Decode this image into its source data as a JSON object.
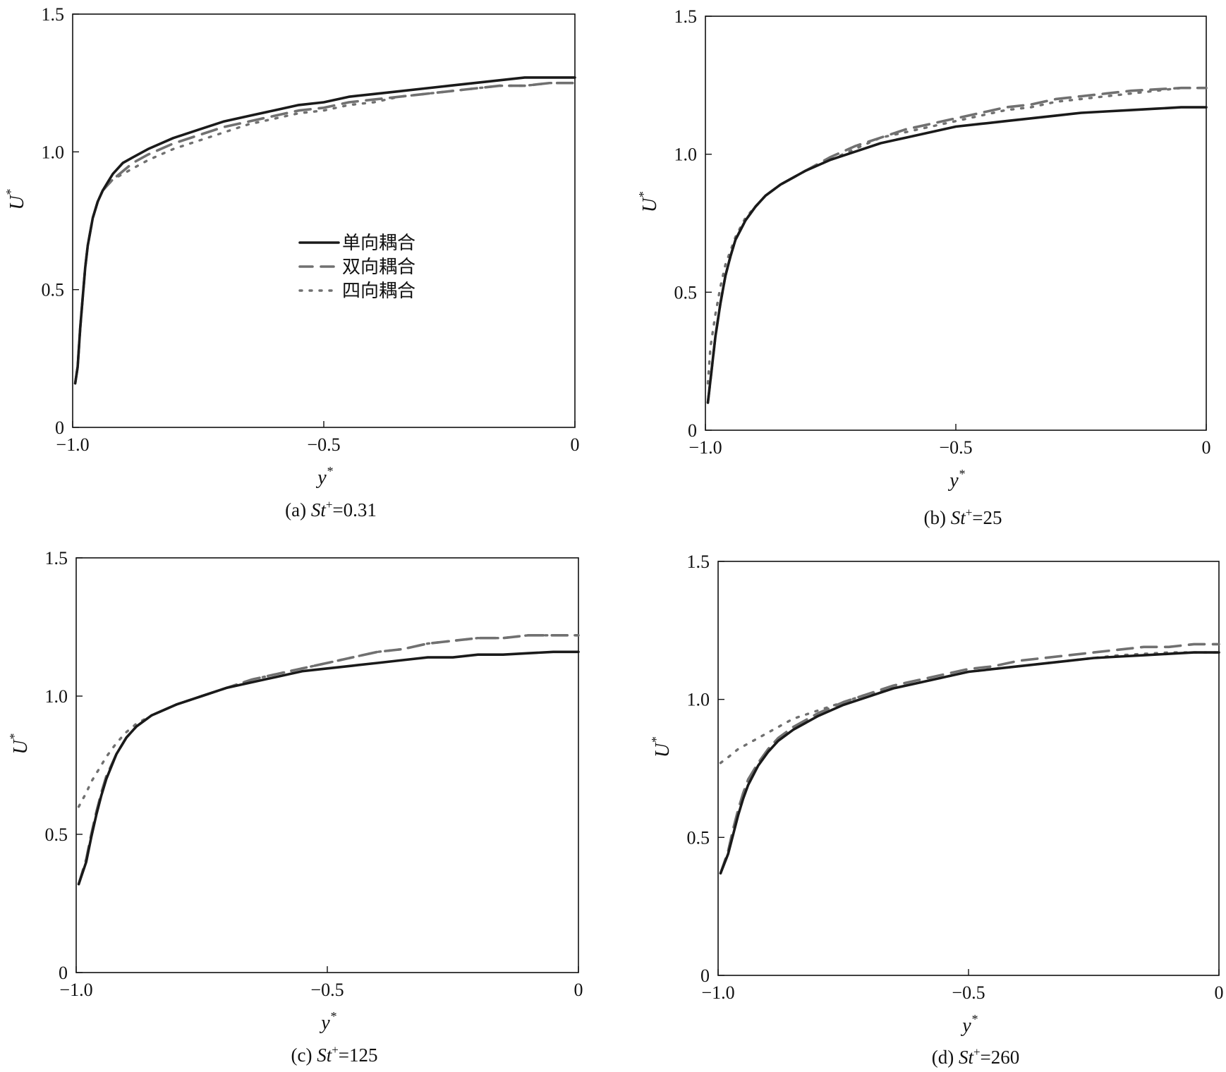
{
  "legend": {
    "entries": [
      {
        "label": "单向耦合",
        "style": "solid",
        "color": "#1a1a1a"
      },
      {
        "label": "双向耦合",
        "style": "dashed",
        "color": "#707070"
      },
      {
        "label": "四向耦合",
        "style": "dotted",
        "color": "#707070"
      }
    ]
  },
  "chart_data": [
    {
      "type": "line",
      "id": "a",
      "caption_prefix": "(a) ",
      "caption_var": "St",
      "caption_sup": "+",
      "caption_value": "=0.31",
      "xlabel": "y",
      "xlabel_sup": "*",
      "ylabel": "U",
      "ylabel_sup": "*",
      "xlim": [
        -1.0,
        0
      ],
      "ylim": [
        0,
        1.5
      ],
      "xticks": [
        {
          "v": -1.0,
          "label": "−1.0"
        },
        {
          "v": -0.5,
          "label": "−0.5"
        },
        {
          "v": 0,
          "label": "0"
        }
      ],
      "yticks": [
        {
          "v": 0,
          "label": "0"
        },
        {
          "v": 0.5,
          "label": "0.5"
        },
        {
          "v": 1.0,
          "label": "1.0"
        },
        {
          "v": 1.5,
          "label": "1.5"
        }
      ],
      "legend_shown": true,
      "series": [
        {
          "name": "单向耦合",
          "x": [
            -0.995,
            -0.99,
            -0.985,
            -0.98,
            -0.975,
            -0.97,
            -0.96,
            -0.95,
            -0.94,
            -0.93,
            -0.92,
            -0.9,
            -0.88,
            -0.85,
            -0.8,
            -0.75,
            -0.7,
            -0.65,
            -0.6,
            -0.55,
            -0.5,
            -0.45,
            -0.4,
            -0.35,
            -0.3,
            -0.25,
            -0.2,
            -0.15,
            -0.1,
            -0.05,
            0
          ],
          "y": [
            0.16,
            0.22,
            0.36,
            0.47,
            0.58,
            0.66,
            0.76,
            0.82,
            0.86,
            0.89,
            0.92,
            0.96,
            0.98,
            1.01,
            1.05,
            1.08,
            1.11,
            1.13,
            1.15,
            1.17,
            1.18,
            1.2,
            1.21,
            1.22,
            1.23,
            1.24,
            1.25,
            1.26,
            1.27,
            1.27,
            1.27
          ]
        },
        {
          "name": "双向耦合",
          "x": [
            -0.995,
            -0.99,
            -0.985,
            -0.98,
            -0.975,
            -0.97,
            -0.96,
            -0.95,
            -0.94,
            -0.93,
            -0.92,
            -0.9,
            -0.88,
            -0.85,
            -0.8,
            -0.75,
            -0.7,
            -0.65,
            -0.6,
            -0.55,
            -0.5,
            -0.45,
            -0.4,
            -0.35,
            -0.3,
            -0.25,
            -0.2,
            -0.15,
            -0.1,
            -0.05,
            0
          ],
          "y": [
            0.16,
            0.22,
            0.36,
            0.47,
            0.58,
            0.66,
            0.76,
            0.82,
            0.86,
            0.88,
            0.9,
            0.93,
            0.96,
            0.99,
            1.03,
            1.06,
            1.09,
            1.11,
            1.13,
            1.15,
            1.16,
            1.18,
            1.19,
            1.2,
            1.21,
            1.22,
            1.23,
            1.24,
            1.24,
            1.25,
            1.25
          ]
        },
        {
          "name": "四向耦合",
          "x": [
            -0.995,
            -0.99,
            -0.985,
            -0.98,
            -0.975,
            -0.97,
            -0.96,
            -0.95,
            -0.94,
            -0.93,
            -0.92,
            -0.9,
            -0.88,
            -0.85,
            -0.8,
            -0.75,
            -0.7,
            -0.65,
            -0.6,
            -0.55,
            -0.5,
            -0.45,
            -0.4,
            -0.35,
            -0.3,
            -0.25,
            -0.2,
            -0.15,
            -0.1,
            -0.05,
            0
          ],
          "y": [
            0.16,
            0.22,
            0.36,
            0.47,
            0.58,
            0.66,
            0.76,
            0.82,
            0.86,
            0.88,
            0.9,
            0.92,
            0.94,
            0.97,
            1.01,
            1.04,
            1.07,
            1.1,
            1.12,
            1.14,
            1.15,
            1.17,
            1.18,
            1.2,
            1.21,
            1.22,
            1.23,
            1.24,
            1.24,
            1.25,
            1.25
          ]
        }
      ]
    },
    {
      "type": "line",
      "id": "b",
      "caption_prefix": "(b) ",
      "caption_var": "St",
      "caption_sup": "+",
      "caption_value": "=25",
      "xlabel": "y",
      "xlabel_sup": "*",
      "ylabel": "U",
      "ylabel_sup": "*",
      "xlim": [
        -1.0,
        0
      ],
      "ylim": [
        0,
        1.5
      ],
      "xticks": [
        {
          "v": -1.0,
          "label": "−1.0"
        },
        {
          "v": -0.5,
          "label": "−0.5"
        },
        {
          "v": 0,
          "label": "0"
        }
      ],
      "yticks": [
        {
          "v": 0,
          "label": "0"
        },
        {
          "v": 0.5,
          "label": "0.5"
        },
        {
          "v": 1.0,
          "label": "1.0"
        },
        {
          "v": 1.5,
          "label": "1.5"
        }
      ],
      "legend_shown": false,
      "series": [
        {
          "name": "单向耦合",
          "x": [
            -0.995,
            -0.99,
            -0.98,
            -0.97,
            -0.96,
            -0.95,
            -0.94,
            -0.92,
            -0.9,
            -0.88,
            -0.85,
            -0.8,
            -0.75,
            -0.7,
            -0.65,
            -0.6,
            -0.55,
            -0.5,
            -0.45,
            -0.4,
            -0.35,
            -0.3,
            -0.25,
            -0.2,
            -0.15,
            -0.1,
            -0.05,
            0
          ],
          "y": [
            0.1,
            0.18,
            0.34,
            0.46,
            0.56,
            0.63,
            0.69,
            0.76,
            0.81,
            0.85,
            0.89,
            0.94,
            0.98,
            1.01,
            1.04,
            1.06,
            1.08,
            1.1,
            1.11,
            1.12,
            1.13,
            1.14,
            1.15,
            1.155,
            1.16,
            1.165,
            1.17,
            1.17
          ]
        },
        {
          "name": "双向耦合",
          "x": [
            -0.995,
            -0.99,
            -0.98,
            -0.97,
            -0.96,
            -0.95,
            -0.94,
            -0.92,
            -0.9,
            -0.88,
            -0.85,
            -0.8,
            -0.75,
            -0.7,
            -0.65,
            -0.6,
            -0.55,
            -0.5,
            -0.45,
            -0.4,
            -0.35,
            -0.3,
            -0.25,
            -0.2,
            -0.15,
            -0.1,
            -0.05,
            0
          ],
          "y": [
            0.1,
            0.18,
            0.34,
            0.46,
            0.56,
            0.63,
            0.69,
            0.76,
            0.81,
            0.85,
            0.89,
            0.94,
            0.99,
            1.03,
            1.06,
            1.09,
            1.11,
            1.13,
            1.15,
            1.17,
            1.18,
            1.2,
            1.21,
            1.22,
            1.23,
            1.235,
            1.24,
            1.24
          ]
        },
        {
          "name": "四向耦合",
          "x": [
            -0.995,
            -0.99,
            -0.98,
            -0.97,
            -0.96,
            -0.95,
            -0.94,
            -0.92,
            -0.9,
            -0.88,
            -0.85,
            -0.8,
            -0.75,
            -0.7,
            -0.65,
            -0.6,
            -0.55,
            -0.5,
            -0.45,
            -0.4,
            -0.35,
            -0.3,
            -0.25,
            -0.2,
            -0.15,
            -0.1,
            -0.05,
            0
          ],
          "y": [
            0.17,
            0.3,
            0.42,
            0.52,
            0.6,
            0.65,
            0.7,
            0.77,
            0.81,
            0.85,
            0.89,
            0.94,
            0.98,
            1.02,
            1.06,
            1.08,
            1.1,
            1.12,
            1.14,
            1.16,
            1.17,
            1.19,
            1.2,
            1.21,
            1.22,
            1.23,
            1.24,
            1.24
          ]
        }
      ]
    },
    {
      "type": "line",
      "id": "c",
      "caption_prefix": "(c) ",
      "caption_var": "St",
      "caption_sup": "+",
      "caption_value": "=125",
      "xlabel": "y",
      "xlabel_sup": "*",
      "ylabel": "U",
      "ylabel_sup": "*",
      "xlim": [
        -1.0,
        0
      ],
      "ylim": [
        0,
        1.5
      ],
      "xticks": [
        {
          "v": -1.0,
          "label": "−1.0"
        },
        {
          "v": -0.5,
          "label": "−0.5"
        },
        {
          "v": 0,
          "label": "0"
        }
      ],
      "yticks": [
        {
          "v": 0,
          "label": "0"
        },
        {
          "v": 0.5,
          "label": "0.5"
        },
        {
          "v": 1.0,
          "label": "1.0"
        },
        {
          "v": 1.5,
          "label": "1.5"
        }
      ],
      "legend_shown": false,
      "series": [
        {
          "name": "单向耦合",
          "x": [
            -0.995,
            -0.98,
            -0.97,
            -0.96,
            -0.95,
            -0.94,
            -0.92,
            -0.9,
            -0.88,
            -0.85,
            -0.8,
            -0.75,
            -0.7,
            -0.65,
            -0.6,
            -0.55,
            -0.5,
            -0.45,
            -0.4,
            -0.35,
            -0.3,
            -0.25,
            -0.2,
            -0.15,
            -0.1,
            -0.05,
            0
          ],
          "y": [
            0.32,
            0.4,
            0.49,
            0.57,
            0.64,
            0.7,
            0.79,
            0.85,
            0.89,
            0.93,
            0.97,
            1.0,
            1.03,
            1.05,
            1.07,
            1.09,
            1.1,
            1.11,
            1.12,
            1.13,
            1.14,
            1.14,
            1.15,
            1.15,
            1.155,
            1.16,
            1.16
          ]
        },
        {
          "name": "双向耦合",
          "x": [
            -0.995,
            -0.98,
            -0.97,
            -0.96,
            -0.95,
            -0.94,
            -0.92,
            -0.9,
            -0.88,
            -0.85,
            -0.8,
            -0.75,
            -0.7,
            -0.65,
            -0.6,
            -0.55,
            -0.5,
            -0.45,
            -0.4,
            -0.35,
            -0.3,
            -0.25,
            -0.2,
            -0.15,
            -0.1,
            -0.05,
            0
          ],
          "y": [
            0.32,
            0.41,
            0.5,
            0.58,
            0.65,
            0.71,
            0.79,
            0.85,
            0.89,
            0.93,
            0.97,
            1.0,
            1.03,
            1.06,
            1.08,
            1.1,
            1.12,
            1.14,
            1.16,
            1.17,
            1.19,
            1.2,
            1.21,
            1.21,
            1.22,
            1.22,
            1.22
          ]
        },
        {
          "name": "四向耦合",
          "x": [
            -0.995,
            -0.98,
            -0.97,
            -0.96,
            -0.95,
            -0.94,
            -0.92,
            -0.9,
            -0.88,
            -0.85,
            -0.8,
            -0.75,
            -0.7,
            -0.65,
            -0.6,
            -0.55,
            -0.5,
            -0.45,
            -0.4,
            -0.35,
            -0.3,
            -0.25,
            -0.2,
            -0.15,
            -0.1,
            -0.05,
            0
          ],
          "y": [
            0.6,
            0.65,
            0.69,
            0.72,
            0.75,
            0.78,
            0.83,
            0.87,
            0.9,
            0.93,
            0.97,
            1.0,
            1.03,
            1.06,
            1.08,
            1.1,
            1.12,
            1.14,
            1.16,
            1.17,
            1.19,
            1.2,
            1.21,
            1.21,
            1.22,
            1.22,
            1.22
          ]
        }
      ]
    },
    {
      "type": "line",
      "id": "d",
      "caption_prefix": "(d) ",
      "caption_var": "St",
      "caption_sup": "+",
      "caption_value": "=260",
      "xlabel": "y",
      "xlabel_sup": "*",
      "ylabel": "U",
      "ylabel_sup": "*",
      "xlim": [
        -1.0,
        0
      ],
      "ylim": [
        0,
        1.5
      ],
      "xticks": [
        {
          "v": -1.0,
          "label": "−1.0"
        },
        {
          "v": -0.5,
          "label": "−0.5"
        },
        {
          "v": 0,
          "label": "0"
        }
      ],
      "yticks": [
        {
          "v": 0,
          "label": "0"
        },
        {
          "v": 0.5,
          "label": "0.5"
        },
        {
          "v": 1.0,
          "label": "1.0"
        },
        {
          "v": 1.5,
          "label": "1.5"
        }
      ],
      "legend_shown": false,
      "series": [
        {
          "name": "单向耦合",
          "x": [
            -0.995,
            -0.98,
            -0.97,
            -0.96,
            -0.95,
            -0.94,
            -0.92,
            -0.9,
            -0.88,
            -0.85,
            -0.8,
            -0.75,
            -0.7,
            -0.65,
            -0.6,
            -0.55,
            -0.5,
            -0.45,
            -0.4,
            -0.35,
            -0.3,
            -0.25,
            -0.2,
            -0.15,
            -0.1,
            -0.05,
            0
          ],
          "y": [
            0.37,
            0.44,
            0.51,
            0.58,
            0.64,
            0.69,
            0.76,
            0.81,
            0.85,
            0.89,
            0.94,
            0.98,
            1.01,
            1.04,
            1.06,
            1.08,
            1.1,
            1.11,
            1.12,
            1.13,
            1.14,
            1.15,
            1.155,
            1.16,
            1.165,
            1.17,
            1.17
          ]
        },
        {
          "name": "双向耦合",
          "x": [
            -0.995,
            -0.98,
            -0.97,
            -0.96,
            -0.95,
            -0.94,
            -0.92,
            -0.9,
            -0.88,
            -0.85,
            -0.8,
            -0.75,
            -0.7,
            -0.65,
            -0.6,
            -0.55,
            -0.5,
            -0.45,
            -0.4,
            -0.35,
            -0.3,
            -0.25,
            -0.2,
            -0.15,
            -0.1,
            -0.05,
            0
          ],
          "y": [
            0.37,
            0.45,
            0.53,
            0.6,
            0.66,
            0.71,
            0.77,
            0.82,
            0.86,
            0.9,
            0.95,
            0.99,
            1.02,
            1.05,
            1.07,
            1.09,
            1.11,
            1.12,
            1.14,
            1.15,
            1.16,
            1.17,
            1.18,
            1.19,
            1.19,
            1.2,
            1.2
          ]
        },
        {
          "name": "四向耦合",
          "x": [
            -0.995,
            -0.98,
            -0.96,
            -0.94,
            -0.92,
            -0.9,
            -0.88,
            -0.85,
            -0.8,
            -0.75,
            -0.7,
            -0.65,
            -0.6,
            -0.55,
            -0.5,
            -0.45,
            -0.4,
            -0.35,
            -0.3,
            -0.25,
            -0.2,
            -0.15,
            -0.1,
            -0.05,
            0
          ],
          "y": [
            0.77,
            0.79,
            0.82,
            0.84,
            0.86,
            0.88,
            0.9,
            0.93,
            0.96,
            0.99,
            1.02,
            1.04,
            1.06,
            1.08,
            1.1,
            1.11,
            1.12,
            1.13,
            1.14,
            1.15,
            1.16,
            1.165,
            1.17,
            1.17,
            1.17
          ]
        }
      ]
    }
  ]
}
